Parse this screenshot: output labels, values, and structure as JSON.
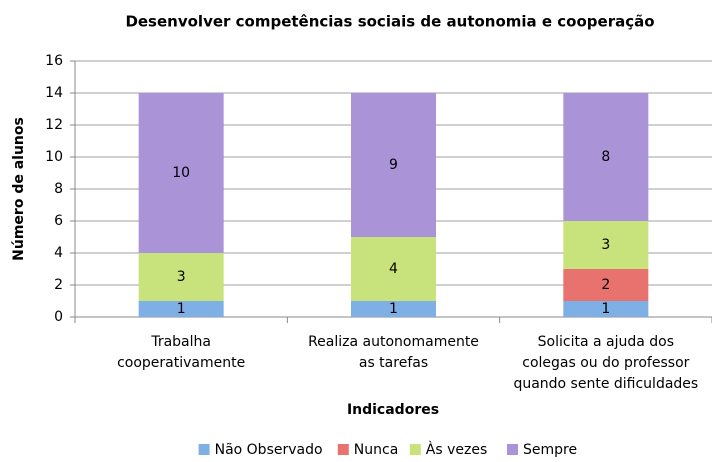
{
  "chart_data": {
    "type": "stacked_bar",
    "title": "Desenvolver competências sociais de autonomia e cooperação",
    "x_label": "Indicadores",
    "y_label": "Número de alunos",
    "categories": [
      [
        "Trabalha",
        "cooperativamente"
      ],
      [
        "Realiza autonomamente",
        "as tarefas"
      ],
      [
        "Solicita a ajuda dos",
        "colegas ou do professor",
        "quando sente dificuldades"
      ]
    ],
    "series": [
      {
        "name": "Não Observado",
        "color": "#7eb0e6",
        "values": [
          1,
          1,
          1
        ]
      },
      {
        "name": "Nunca",
        "color": "#e8726e",
        "values": [
          0,
          0,
          2
        ]
      },
      {
        "name": "Às vezes",
        "color": "#c8e27c",
        "values": [
          3,
          4,
          3
        ]
      },
      {
        "name": "Sempre",
        "color": "#ab93d8",
        "values": [
          10,
          9,
          8
        ]
      }
    ],
    "ylim": [
      0,
      16
    ],
    "yticks": [
      0,
      2,
      4,
      6,
      8,
      10,
      12,
      14,
      16
    ],
    "grid": true,
    "legend": "bottom"
  }
}
